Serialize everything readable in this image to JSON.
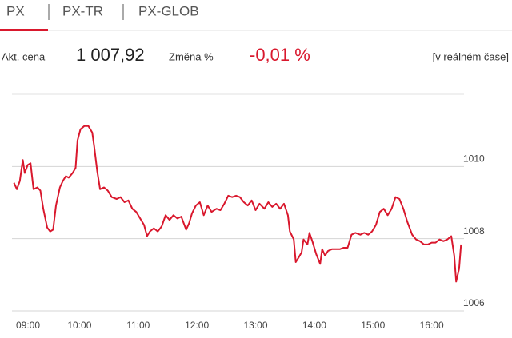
{
  "tabs": [
    "PX",
    "PX-TR",
    "PX-GLOB"
  ],
  "quote": {
    "price_label": "Akt. cena",
    "price": "1 007,92",
    "change_label": "Změna %",
    "change": "-0,01 %",
    "mode": "[v reálném čase]"
  },
  "chart_data": {
    "type": "line",
    "color": "#d9182d",
    "x": [
      "08:53",
      "08:56",
      "08:59",
      "09:02",
      "09:04",
      "09:07",
      "09:10",
      "09:13",
      "09:17",
      "09:20",
      "09:23",
      "09:27",
      "09:30",
      "09:33",
      "09:36",
      "09:40",
      "09:43",
      "09:46",
      "09:49",
      "09:53",
      "09:56",
      "09:58",
      "10:01",
      "10:05",
      "10:09",
      "10:13",
      "10:15",
      "10:18",
      "10:21",
      "10:25",
      "10:29",
      "10:33",
      "10:38",
      "10:42",
      "10:46",
      "10:50",
      "10:54",
      "10:58",
      "11:02",
      "11:06",
      "11:09",
      "11:12",
      "11:16",
      "11:20",
      "11:24",
      "11:28",
      "11:32",
      "11:36",
      "11:40",
      "11:44",
      "11:49",
      "11:52",
      "11:55",
      "11:59",
      "12:03",
      "12:07",
      "12:11",
      "12:15",
      "12:20",
      "12:24",
      "12:28",
      "12:32",
      "12:36",
      "12:40",
      "12:44",
      "12:48",
      "12:52",
      "12:56",
      "13:00",
      "13:04",
      "13:09",
      "13:13",
      "13:17",
      "13:21",
      "13:25",
      "13:29",
      "13:33",
      "13:35",
      "13:39",
      "13:41",
      "13:44",
      "13:47",
      "13:49",
      "13:53",
      "13:55",
      "13:58",
      "14:02",
      "14:06",
      "14:08",
      "14:11",
      "14:14",
      "14:18",
      "14:22",
      "14:26",
      "14:30",
      "14:34",
      "14:38",
      "14:42",
      "14:47",
      "14:51",
      "14:55",
      "14:59",
      "15:03",
      "15:07",
      "15:11",
      "15:15",
      "15:19",
      "15:23",
      "15:27",
      "15:31",
      "15:35",
      "15:40",
      "15:44",
      "15:48",
      "15:52",
      "15:56",
      "16:00",
      "16:04",
      "16:08",
      "16:12",
      "16:16",
      "16:20",
      "16:23",
      "16:25",
      "16:28",
      "16:30"
    ],
    "values": [
      1009.55,
      1009.37,
      1009.6,
      1010.18,
      1009.82,
      1010.04,
      1010.09,
      1009.37,
      1009.42,
      1009.33,
      1008.83,
      1008.31,
      1008.2,
      1008.25,
      1008.92,
      1009.42,
      1009.6,
      1009.73,
      1009.69,
      1009.82,
      1009.96,
      1010.72,
      1011.03,
      1011.12,
      1011.12,
      1010.94,
      1010.56,
      1009.89,
      1009.37,
      1009.42,
      1009.33,
      1009.15,
      1009.1,
      1009.15,
      1009.01,
      1009.06,
      1008.83,
      1008.74,
      1008.56,
      1008.38,
      1008.07,
      1008.2,
      1008.29,
      1008.2,
      1008.34,
      1008.65,
      1008.52,
      1008.65,
      1008.56,
      1008.61,
      1008.25,
      1008.43,
      1008.7,
      1008.92,
      1009.01,
      1008.65,
      1008.92,
      1008.74,
      1008.83,
      1008.79,
      1008.97,
      1009.19,
      1009.15,
      1009.19,
      1009.15,
      1009.01,
      1008.92,
      1009.06,
      1008.79,
      1008.97,
      1008.83,
      1009.01,
      1008.88,
      1008.97,
      1008.83,
      1008.97,
      1008.65,
      1008.2,
      1007.98,
      1007.35,
      1007.48,
      1007.62,
      1007.98,
      1007.84,
      1008.16,
      1007.93,
      1007.57,
      1007.3,
      1007.71,
      1007.53,
      1007.66,
      1007.71,
      1007.71,
      1007.71,
      1007.75,
      1007.75,
      1008.11,
      1008.16,
      1008.11,
      1008.16,
      1008.11,
      1008.2,
      1008.38,
      1008.74,
      1008.83,
      1008.65,
      1008.83,
      1009.15,
      1009.1,
      1008.83,
      1008.47,
      1008.11,
      1007.98,
      1007.93,
      1007.84,
      1007.84,
      1007.89,
      1007.89,
      1007.98,
      1007.93,
      1007.98,
      1008.07,
      1007.53,
      1006.81,
      1007.17,
      1007.84
    ],
    "xlim": [
      "08:51",
      "16:33"
    ],
    "xticks": [
      "09:00",
      "10:00",
      "11:00",
      "12:00",
      "13:00",
      "14:00",
      "15:00",
      "16:00"
    ],
    "ylim": [
      1006,
      1012
    ],
    "yticks": [
      1006,
      1008,
      1010
    ],
    "grid": true
  }
}
